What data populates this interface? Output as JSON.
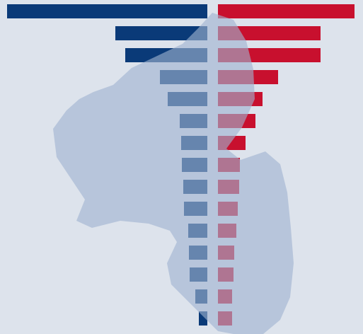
{
  "chart_data": {
    "type": "butterfly",
    "series": [
      {
        "color": "#0a3a78",
        "values": [
          283,
          130,
          116,
          67,
          56,
          39,
          37,
          36,
          34,
          33,
          27,
          26,
          25,
          17,
          12
        ]
      },
      {
        "color": "#c8102e",
        "values": [
          193,
          145,
          145,
          85,
          63,
          53,
          39,
          31,
          30,
          28,
          26,
          23,
          22,
          20,
          20
        ]
      }
    ]
  }
}
